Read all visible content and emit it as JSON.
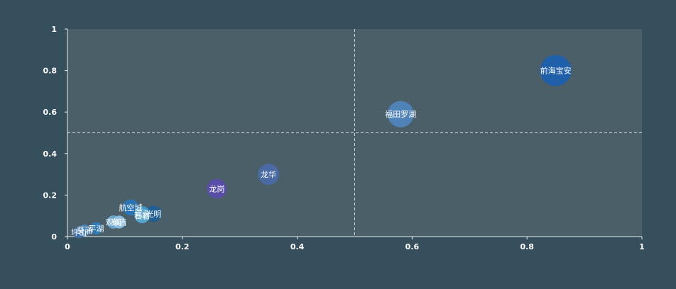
{
  "colors": {
    "page_background": "#354f5c",
    "plot_background": "#4b5f69",
    "axis_line": "#e6eef2",
    "tick_text": "#ffffff",
    "reference_line": "#d6dde1",
    "label_text": "#ffffff"
  },
  "chart_data": {
    "type": "scatter",
    "title": "",
    "xlabel": "",
    "ylabel": "",
    "xlim": [
      0,
      1
    ],
    "ylim": [
      0,
      1
    ],
    "x_ticks": [
      0,
      0.2,
      0.4,
      0.6,
      0.8,
      1
    ],
    "y_ticks": [
      0,
      0.2,
      0.4,
      0.6,
      0.8,
      1
    ],
    "x_tick_labels": [
      "0",
      "0.2",
      "0.4",
      "0.6",
      "0.8",
      "1"
    ],
    "y_tick_labels": [
      "0",
      "0.2",
      "0.4",
      "0.6",
      "0.8",
      "1"
    ],
    "grid": false,
    "reference_lines": {
      "x": 0.5,
      "y": 0.5,
      "style": "dashed"
    },
    "points": [
      {
        "label": "前海宝安",
        "x": 0.85,
        "y": 0.8,
        "size": 1.0,
        "color": "#1d5fae"
      },
      {
        "label": "福田罗湖",
        "x": 0.58,
        "y": 0.59,
        "size": 0.8,
        "color": "#4f84bb"
      },
      {
        "label": "龙华",
        "x": 0.35,
        "y": 0.3,
        "size": 0.58,
        "color": "#496aa7"
      },
      {
        "label": "龙岗",
        "x": 0.26,
        "y": 0.23,
        "size": 0.52,
        "color": "#584cab"
      },
      {
        "label": "航空城",
        "x": 0.11,
        "y": 0.14,
        "size": 0.38,
        "color": "#2a74b7"
      },
      {
        "label": "光明",
        "x": 0.15,
        "y": 0.11,
        "size": 0.38,
        "color": "#1f5f95"
      },
      {
        "label": "福永",
        "x": 0.13,
        "y": 0.11,
        "size": 0.34,
        "color": "#3f9bc7"
      },
      {
        "label": "石岩",
        "x": 0.13,
        "y": 0.1,
        "size": 0.32,
        "color": "#58a8d1"
      },
      {
        "label": "观澜",
        "x": 0.08,
        "y": 0.07,
        "size": 0.26,
        "color": "#6da8cf"
      },
      {
        "label": "布吉",
        "x": 0.09,
        "y": 0.07,
        "size": 0.24,
        "color": "#8cc0e3"
      },
      {
        "label": "平湖",
        "x": 0.05,
        "y": 0.04,
        "size": 0.22,
        "color": "#2e7ab8"
      },
      {
        "label": "坪山",
        "x": 0.02,
        "y": 0.02,
        "size": 0.2,
        "color": "#3b6aa6"
      },
      {
        "label": "葵涌",
        "x": 0.03,
        "y": 0.03,
        "size": 0.18,
        "color": "#4d88be"
      }
    ]
  }
}
